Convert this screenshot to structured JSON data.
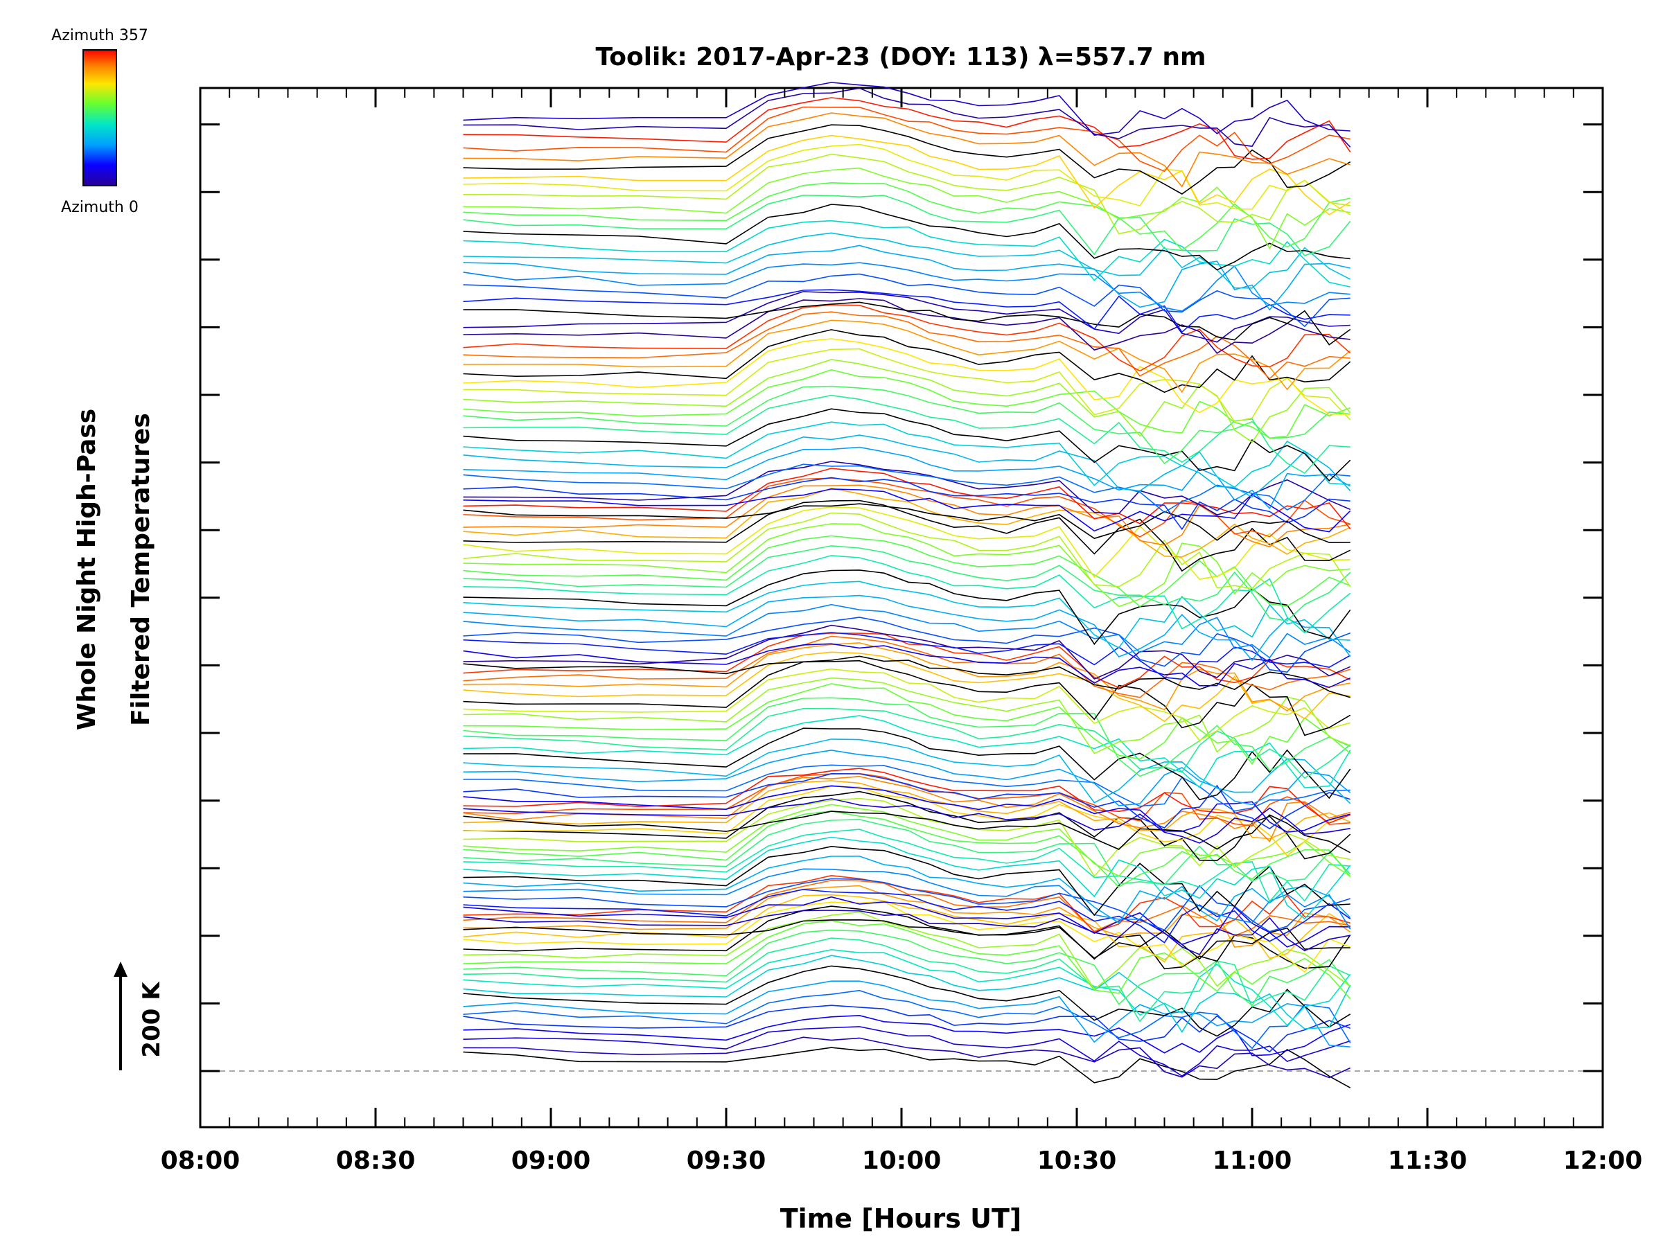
{
  "chart_data": {
    "type": "line",
    "title": "Toolik: 2017-Apr-23 (DOY: 113) λ=557.7 nm",
    "xlabel": "Time [Hours UT]",
    "ylabel_line1": "Whole Night High-Pass",
    "ylabel_line2": "Filtered Temperatures",
    "scale_label": "200 K",
    "xlim": [
      8.0,
      12.0
    ],
    "x_ticks": [
      {
        "value": 8.0,
        "label": "08:00"
      },
      {
        "value": 8.5,
        "label": "08:30"
      },
      {
        "value": 9.0,
        "label": "09:00"
      },
      {
        "value": 9.5,
        "label": "09:30"
      },
      {
        "value": 10.0,
        "label": "10:00"
      },
      {
        "value": 10.5,
        "label": "10:30"
      },
      {
        "value": 11.0,
        "label": "11:00"
      },
      {
        "value": 11.5,
        "label": "11:30"
      },
      {
        "value": 12.0,
        "label": "12:00"
      }
    ],
    "colorbar": {
      "top_label": "Azimuth 357",
      "bottom_label": "Azimuth 0",
      "min": 0,
      "max": 357,
      "colormap": "rainbow"
    },
    "times": [
      8.75,
      8.9,
      9.08,
      9.25,
      9.5,
      9.62,
      9.72,
      9.8,
      9.88,
      9.95,
      10.02,
      10.08,
      10.15,
      10.22,
      10.3,
      10.38,
      10.45,
      10.55,
      10.62,
      10.68,
      10.75,
      10.8,
      10.85,
      10.9,
      10.95,
      11.0,
      11.05,
      11.1,
      11.15,
      11.22,
      11.28
    ],
    "stacks": 6,
    "series_per_stack": 20,
    "series_count": 120,
    "description_note": "Stacked high-pass filtered temperature traces, one per azimuth, offset vertically."
  }
}
